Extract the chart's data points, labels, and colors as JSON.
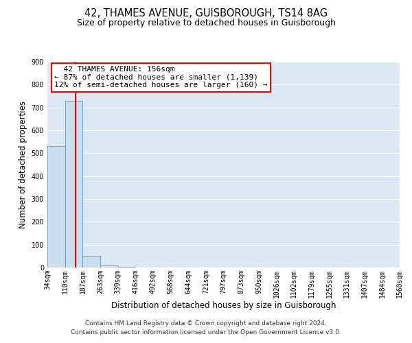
{
  "title": "42, THAMES AVENUE, GUISBOROUGH, TS14 8AG",
  "subtitle": "Size of property relative to detached houses in Guisborough",
  "xlabel": "Distribution of detached houses by size in Guisborough",
  "ylabel": "Number of detached properties",
  "bin_edges": [
    34,
    110,
    187,
    263,
    339,
    416,
    492,
    568,
    644,
    721,
    797,
    873,
    950,
    1026,
    1102,
    1179,
    1255,
    1331,
    1407,
    1484,
    1560
  ],
  "bin_labels": [
    "34sqm",
    "110sqm",
    "187sqm",
    "263sqm",
    "339sqm",
    "416sqm",
    "492sqm",
    "568sqm",
    "644sqm",
    "721sqm",
    "797sqm",
    "873sqm",
    "950sqm",
    "1026sqm",
    "1102sqm",
    "1179sqm",
    "1255sqm",
    "1331sqm",
    "1407sqm",
    "1484sqm",
    "1560sqm"
  ],
  "bar_heights": [
    530,
    728,
    50,
    10,
    2,
    0,
    0,
    0,
    0,
    0,
    0,
    0,
    0,
    0,
    0,
    0,
    0,
    0,
    0,
    0
  ],
  "bar_color": "#c9dff0",
  "bar_edge_color": "#5b9bd5",
  "vline_x": 156,
  "vline_color": "red",
  "ylim": [
    0,
    900
  ],
  "yticks": [
    0,
    100,
    200,
    300,
    400,
    500,
    600,
    700,
    800,
    900
  ],
  "annotation_title": "42 THAMES AVENUE: 156sqm",
  "annotation_line1": "← 87% of detached houses are smaller (1,139)",
  "annotation_line2": "12% of semi-detached houses are larger (160) →",
  "annotation_box_color": "white",
  "annotation_edge_color": "red",
  "footer_line1": "Contains HM Land Registry data © Crown copyright and database right 2024.",
  "footer_line2": "Contains public sector information licensed under the Open Government Licence v3.0.",
  "background_color": "#dce9f5",
  "grid_color": "white",
  "title_fontsize": 10.5,
  "subtitle_fontsize": 9,
  "axis_label_fontsize": 8.5,
  "tick_fontsize": 7,
  "annotation_fontsize": 8,
  "footer_fontsize": 6.5
}
